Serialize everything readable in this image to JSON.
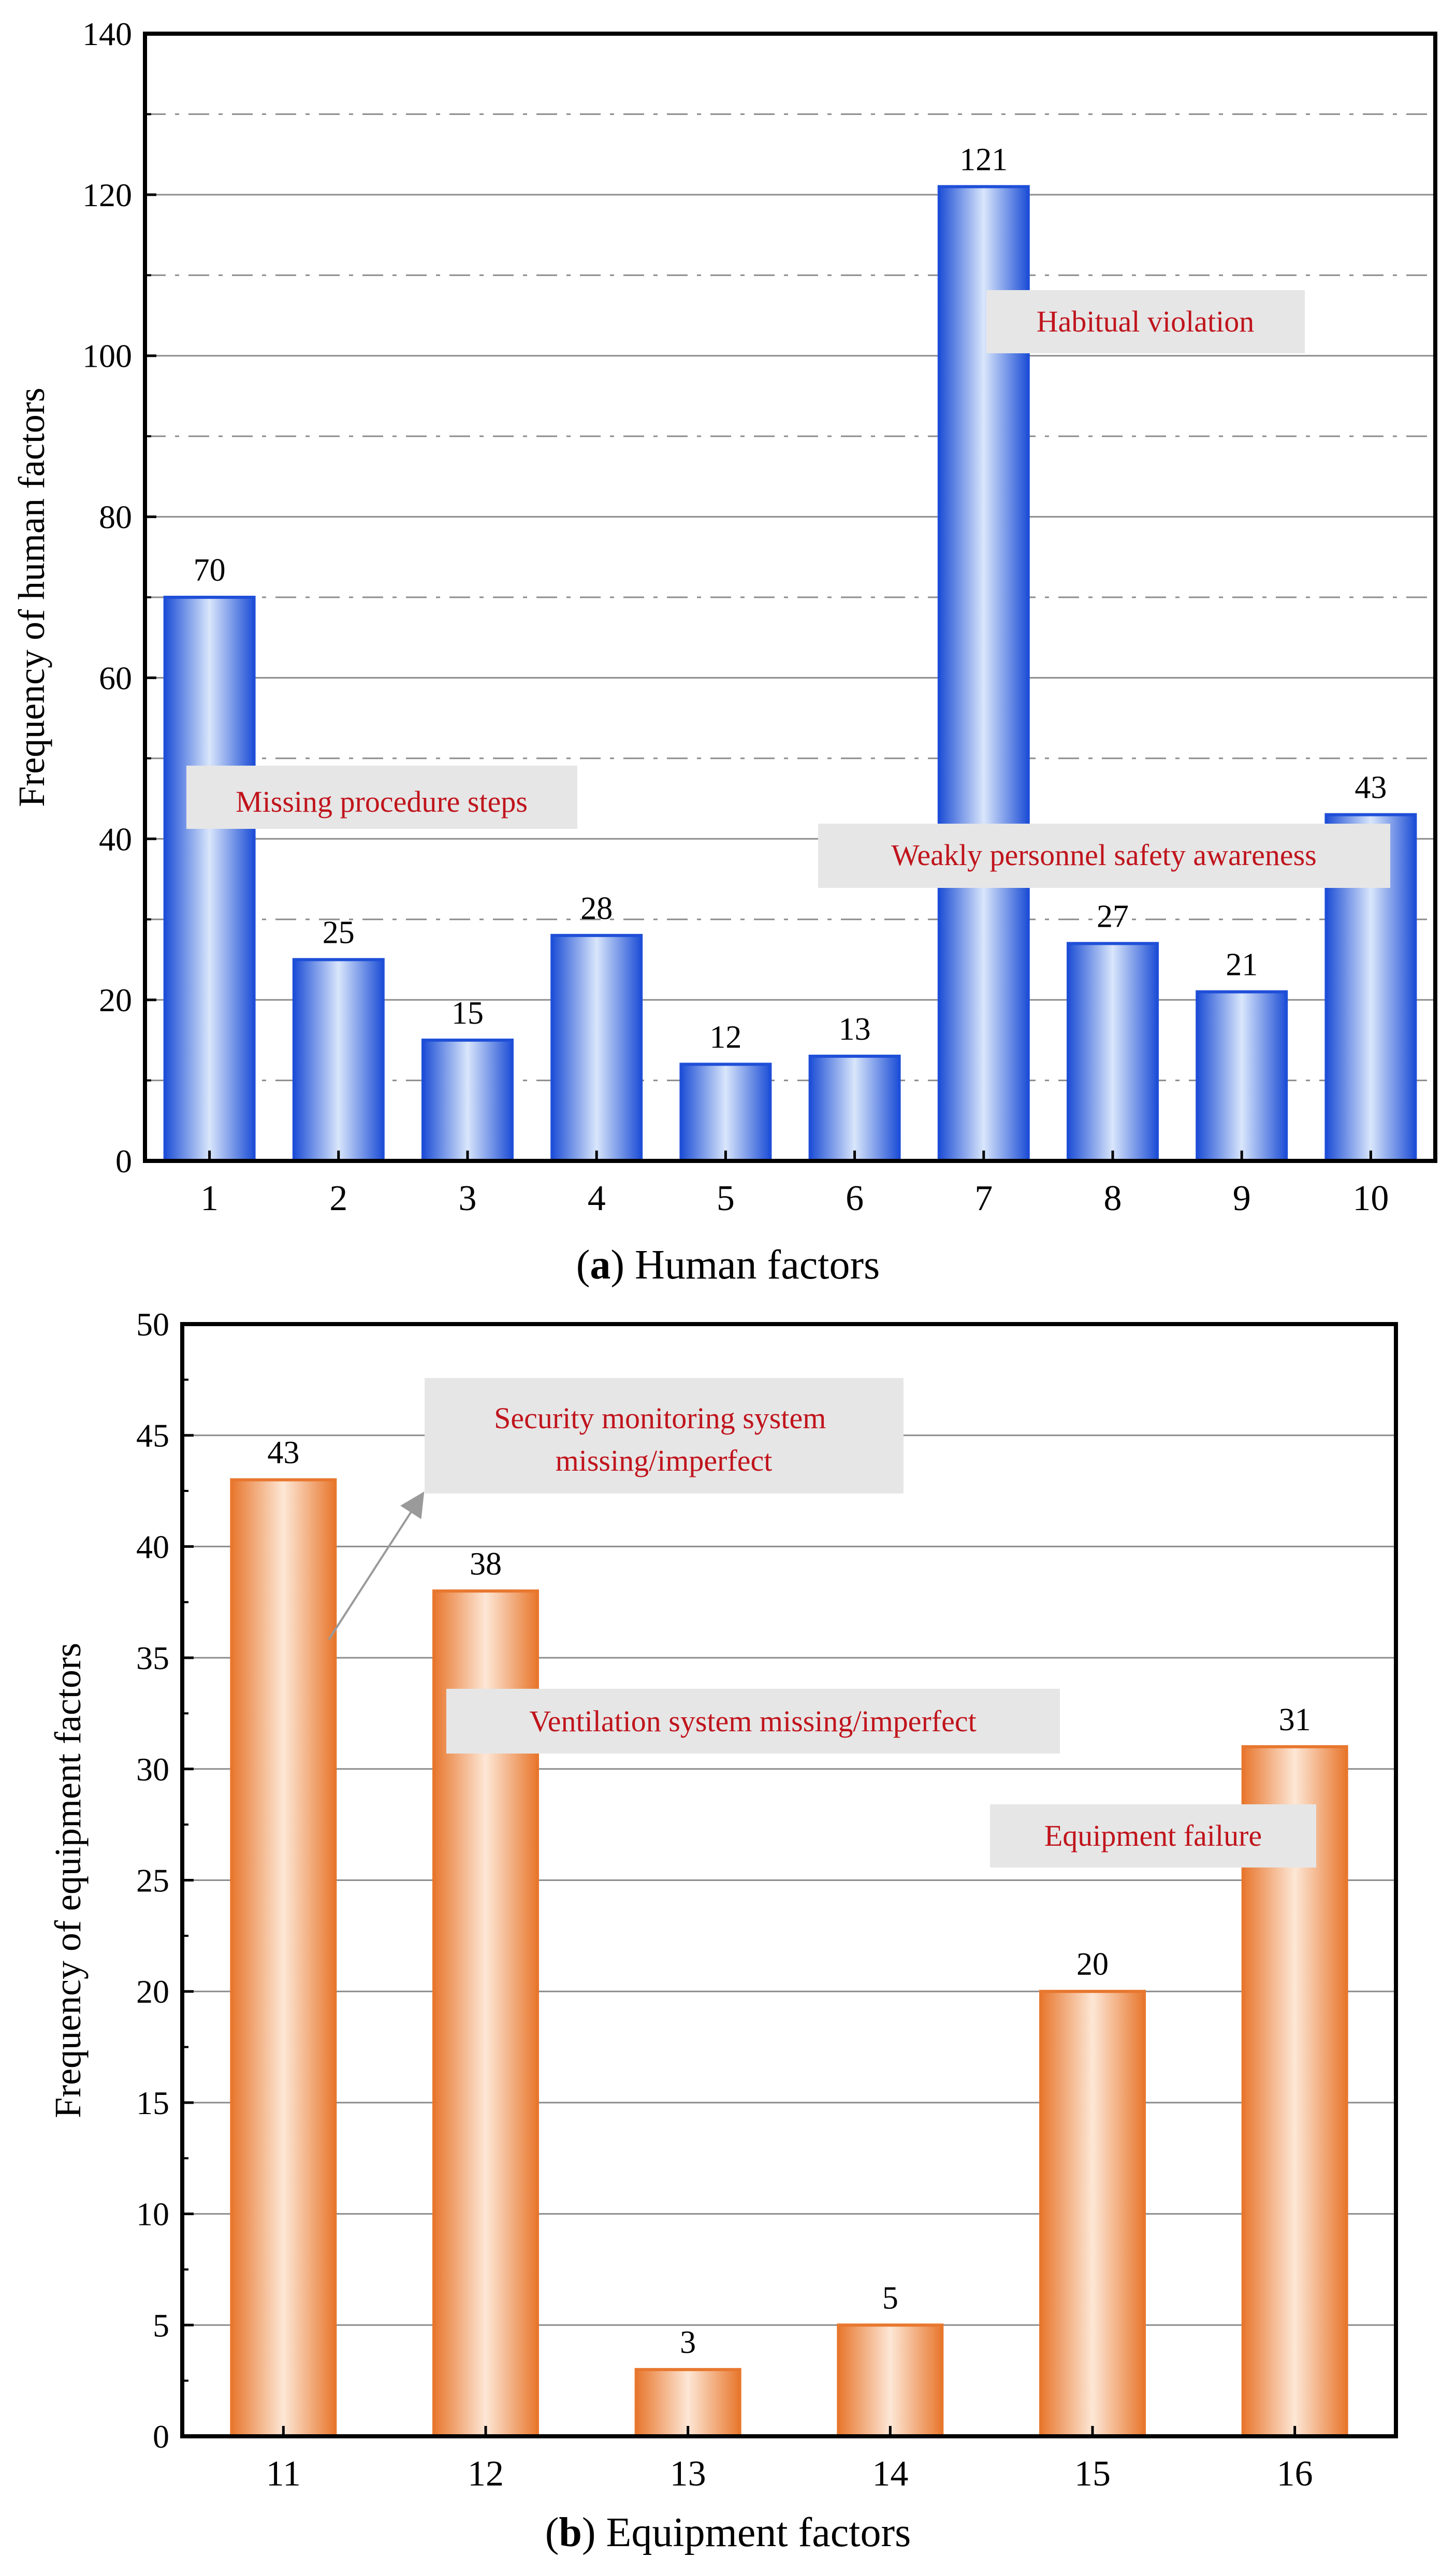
{
  "chart_data": [
    {
      "type": "bar",
      "caption_letter": "a",
      "caption_text": "Human factors",
      "ylabel": "Frequency of human factors",
      "xlabel": "",
      "ylim": [
        0,
        140
      ],
      "yticks": [
        0,
        20,
        40,
        60,
        80,
        100,
        120,
        140
      ],
      "categories": [
        "1",
        "2",
        "3",
        "4",
        "5",
        "6",
        "7",
        "8",
        "9",
        "10"
      ],
      "values": [
        70,
        25,
        15,
        28,
        12,
        13,
        121,
        27,
        21,
        43
      ],
      "bar_color": "#1f4fd8",
      "gridlines": "solid at major ticks, dash-dot at minor ticks",
      "annotations": [
        {
          "text": "Missing procedure steps"
        },
        {
          "text": "Habitual violation"
        },
        {
          "text": "Weakly personnel safety awareness"
        }
      ]
    },
    {
      "type": "bar",
      "caption_letter": "b",
      "caption_text": "Equipment factors",
      "ylabel": "Frequency of equipment factors",
      "xlabel": "",
      "ylim": [
        0,
        50
      ],
      "yticks": [
        0,
        5,
        10,
        15,
        20,
        25,
        30,
        35,
        40,
        45,
        50
      ],
      "categories": [
        "11",
        "12",
        "13",
        "14",
        "15",
        "16"
      ],
      "values": [
        43,
        38,
        3,
        5,
        20,
        31
      ],
      "bar_color": "#e8772e",
      "gridlines": "solid at major ticks",
      "annotations": [
        {
          "text": "Security monitoring system\nmissing/imperfect"
        },
        {
          "text": "Ventilation system missing/imperfect"
        },
        {
          "text": "Equipment failure"
        }
      ]
    }
  ],
  "colors": {
    "annotation_text": "#c0141c",
    "annotation_box": "#e6e6e6",
    "gridline": "#8c8c8c"
  }
}
